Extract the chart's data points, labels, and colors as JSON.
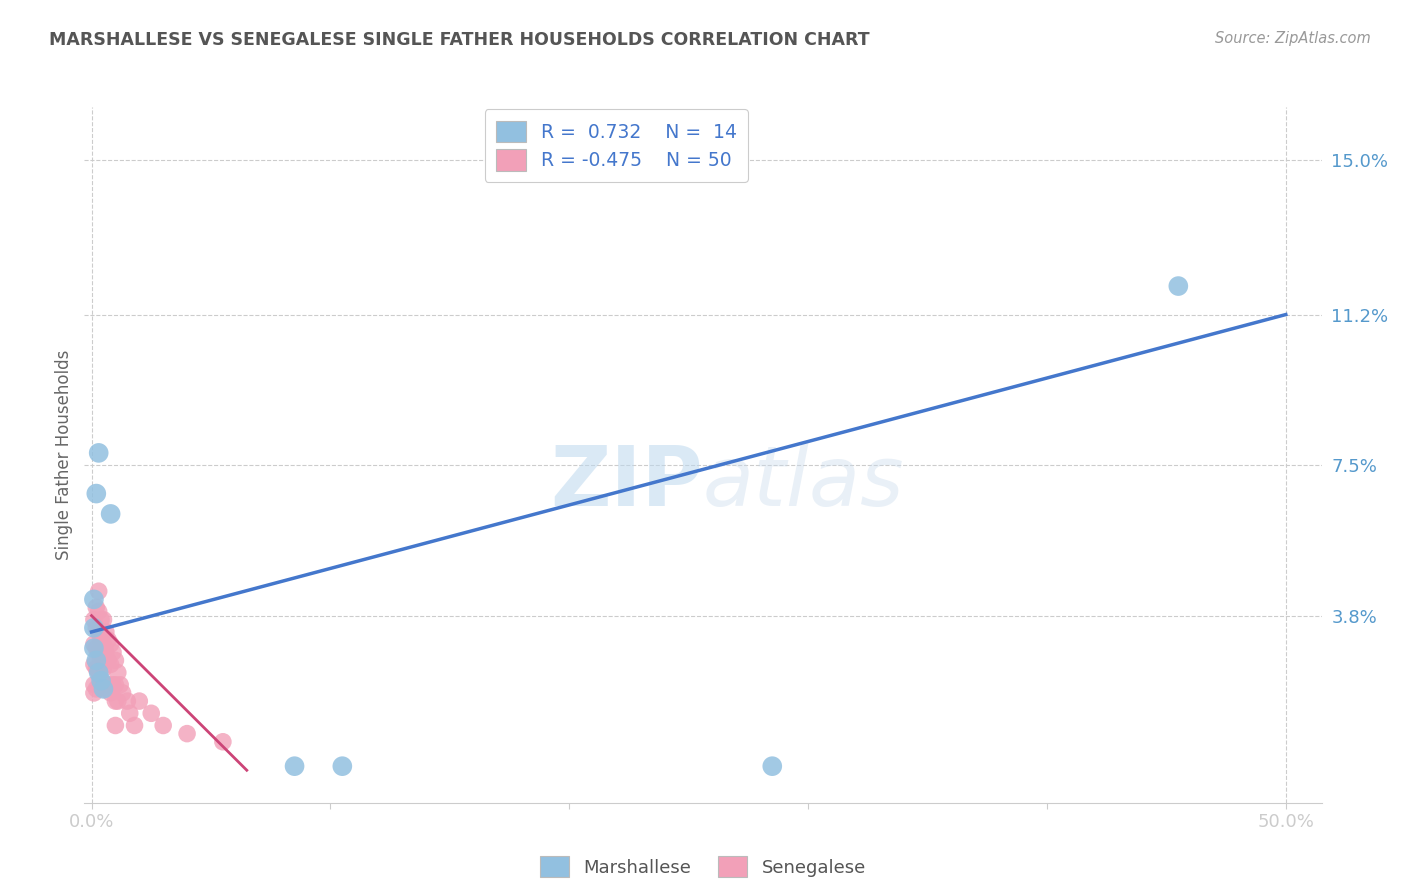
{
  "title": "MARSHALLESE VS SENEGALESE SINGLE FATHER HOUSEHOLDS CORRELATION CHART",
  "source": "Source: ZipAtlas.com",
  "ylabel": "Single Father Households",
  "ytick_values": [
    0.0,
    0.038,
    0.075,
    0.112,
    0.15
  ],
  "ytick_labels": [
    "",
    "3.8%",
    "7.5%",
    "11.2%",
    "15.0%"
  ],
  "xlim": [
    -0.003,
    0.515
  ],
  "ylim": [
    -0.008,
    0.163
  ],
  "blue_color": "#92C0E0",
  "pink_color": "#F2A0B8",
  "blue_line_color": "#4477CC",
  "pink_line_color": "#CC4477",
  "watermark_zip": "ZIP",
  "watermark_atlas": "atlas",
  "grid_color": "#CCCCCC",
  "background_color": "#FFFFFF",
  "title_color": "#555555",
  "tick_label_color": "#5599CC",
  "blue_line_x0": 0.0,
  "blue_line_y0": 0.034,
  "blue_line_x1": 0.5,
  "blue_line_y1": 0.112,
  "pink_line_x0": 0.0,
  "pink_line_y0": 0.038,
  "pink_line_x1": 0.065,
  "pink_line_y1": 0.0,
  "blue_x": [
    0.001,
    0.002,
    0.003,
    0.008,
    0.001,
    0.001,
    0.002,
    0.003,
    0.004,
    0.005,
    0.085,
    0.105,
    0.285,
    0.455
  ],
  "blue_y": [
    0.042,
    0.068,
    0.078,
    0.063,
    0.035,
    0.03,
    0.027,
    0.024,
    0.022,
    0.02,
    0.001,
    0.001,
    0.001,
    0.119
  ],
  "pink_x": [
    0.001,
    0.001,
    0.001,
    0.001,
    0.001,
    0.002,
    0.002,
    0.002,
    0.002,
    0.002,
    0.003,
    0.003,
    0.003,
    0.003,
    0.003,
    0.004,
    0.004,
    0.004,
    0.004,
    0.005,
    0.005,
    0.005,
    0.005,
    0.006,
    0.006,
    0.006,
    0.007,
    0.007,
    0.007,
    0.008,
    0.008,
    0.008,
    0.009,
    0.009,
    0.01,
    0.01,
    0.01,
    0.01,
    0.011,
    0.011,
    0.012,
    0.013,
    0.015,
    0.016,
    0.018,
    0.02,
    0.025,
    0.03,
    0.04,
    0.055
  ],
  "pink_y": [
    0.037,
    0.031,
    0.026,
    0.021,
    0.019,
    0.04,
    0.035,
    0.03,
    0.025,
    0.02,
    0.044,
    0.039,
    0.034,
    0.029,
    0.024,
    0.037,
    0.032,
    0.028,
    0.022,
    0.037,
    0.031,
    0.025,
    0.02,
    0.034,
    0.029,
    0.021,
    0.032,
    0.027,
    0.021,
    0.031,
    0.026,
    0.019,
    0.029,
    0.021,
    0.027,
    0.021,
    0.017,
    0.011,
    0.024,
    0.017,
    0.021,
    0.019,
    0.017,
    0.014,
    0.011,
    0.017,
    0.014,
    0.011,
    0.009,
    0.007
  ]
}
